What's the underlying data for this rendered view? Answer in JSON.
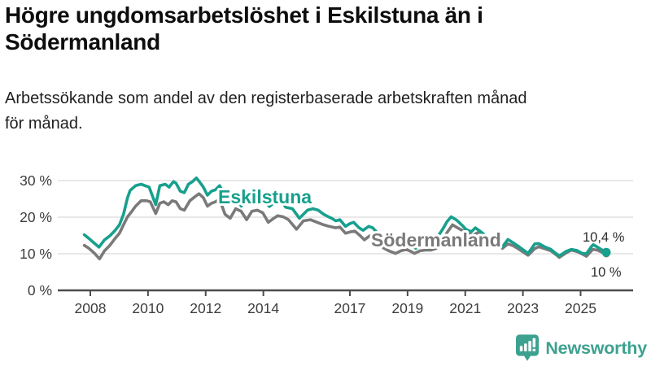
{
  "header": {
    "title_line1": "Högre ungdomsarbetslöshet i Eskilstuna än i",
    "title_line2": "Södermanland",
    "subtitle": "Arbetssökande som andel av den registerbaserade arbetskraften månad för månad."
  },
  "chart_data": {
    "type": "line",
    "unit": "%",
    "grid": true,
    "ylim": [
      0,
      32
    ],
    "xlim_years": [
      2007.1,
      2026.8
    ],
    "y_ticks": [
      {
        "value": 30,
        "label": "30 %"
      },
      {
        "value": 20,
        "label": "20 %"
      },
      {
        "value": 10,
        "label": "10 %"
      },
      {
        "value": 0,
        "label": "0 %"
      }
    ],
    "x_ticks": [
      2008,
      2010,
      2012,
      2014,
      2017,
      2019,
      2021,
      2023,
      2025
    ],
    "series": [
      {
        "name": "Eskilstuna",
        "color": "#17a08d",
        "end_label": "10,4 %",
        "end_value": 10.4,
        "points": [
          [
            2007.79,
            15.2
          ],
          [
            2007.95,
            14.2
          ],
          [
            2008.12,
            13.0
          ],
          [
            2008.3,
            11.8
          ],
          [
            2008.49,
            13.8
          ],
          [
            2008.68,
            14.9
          ],
          [
            2008.86,
            16.4
          ],
          [
            2009.01,
            17.9
          ],
          [
            2009.15,
            20.8
          ],
          [
            2009.29,
            25.3
          ],
          [
            2009.38,
            27.3
          ],
          [
            2009.57,
            28.6
          ],
          [
            2009.76,
            29.0
          ],
          [
            2009.9,
            28.6
          ],
          [
            2010.04,
            28.2
          ],
          [
            2010.27,
            23.4
          ],
          [
            2010.41,
            28.6
          ],
          [
            2010.6,
            29.0
          ],
          [
            2010.73,
            28.2
          ],
          [
            2010.88,
            29.7
          ],
          [
            2010.97,
            29.3
          ],
          [
            2011.12,
            27.1
          ],
          [
            2011.26,
            26.7
          ],
          [
            2011.4,
            29.0
          ],
          [
            2011.54,
            29.7
          ],
          [
            2011.68,
            30.7
          ],
          [
            2011.82,
            29.3
          ],
          [
            2011.92,
            28.2
          ],
          [
            2012.06,
            26.0
          ],
          [
            2012.2,
            27.1
          ],
          [
            2012.34,
            27.5
          ],
          [
            2012.48,
            28.6
          ],
          [
            2012.62,
            26.7
          ],
          [
            2012.67,
            24.2
          ],
          [
            2012.81,
            26.5
          ],
          [
            2012.95,
            26.0
          ],
          [
            2013.09,
            25.2
          ],
          [
            2013.23,
            23.0
          ],
          [
            2013.37,
            24.8
          ],
          [
            2013.51,
            25.4
          ],
          [
            2013.65,
            25.2
          ],
          [
            2013.79,
            24.8
          ],
          [
            2013.93,
            24.4
          ],
          [
            2014.07,
            24.0
          ],
          [
            2014.21,
            22.9
          ],
          [
            2014.35,
            23.8
          ],
          [
            2014.49,
            24.4
          ],
          [
            2014.63,
            24.2
          ],
          [
            2014.78,
            22.7
          ],
          [
            2015.01,
            22.3
          ],
          [
            2015.25,
            19.7
          ],
          [
            2015.53,
            21.9
          ],
          [
            2015.72,
            22.3
          ],
          [
            2015.9,
            21.9
          ],
          [
            2016.09,
            20.8
          ],
          [
            2016.23,
            20.2
          ],
          [
            2016.37,
            19.7
          ],
          [
            2016.51,
            19.0
          ],
          [
            2016.65,
            19.3
          ],
          [
            2016.85,
            17.5
          ],
          [
            2016.99,
            18.2
          ],
          [
            2017.13,
            18.6
          ],
          [
            2017.32,
            17.1
          ],
          [
            2017.46,
            16.4
          ],
          [
            2017.65,
            17.5
          ],
          [
            2017.79,
            17.1
          ],
          [
            2017.98,
            15.5
          ],
          [
            2018.16,
            13.8
          ],
          [
            2018.35,
            13.0
          ],
          [
            2018.54,
            12.6
          ],
          [
            2018.72,
            13.2
          ],
          [
            2018.91,
            13.0
          ],
          [
            2019.1,
            12.2
          ],
          [
            2019.29,
            11.5
          ],
          [
            2019.47,
            12.2
          ],
          [
            2019.66,
            12.8
          ],
          [
            2019.85,
            13.5
          ],
          [
            2020.03,
            14.5
          ],
          [
            2020.2,
            16.5
          ],
          [
            2020.37,
            18.8
          ],
          [
            2020.51,
            20.1
          ],
          [
            2020.7,
            19.2
          ],
          [
            2020.89,
            17.8
          ],
          [
            2021.02,
            16.7
          ],
          [
            2021.21,
            16.0
          ],
          [
            2021.35,
            17.1
          ],
          [
            2021.54,
            16.0
          ],
          [
            2021.73,
            14.8
          ],
          [
            2021.92,
            14.0
          ],
          [
            2022.1,
            13.4
          ],
          [
            2022.29,
            11.9
          ],
          [
            2022.48,
            13.9
          ],
          [
            2022.66,
            13.0
          ],
          [
            2022.85,
            12.0
          ],
          [
            2023.04,
            10.9
          ],
          [
            2023.18,
            10.1
          ],
          [
            2023.41,
            12.7
          ],
          [
            2023.55,
            12.8
          ],
          [
            2023.78,
            11.8
          ],
          [
            2023.97,
            11.2
          ],
          [
            2024.16,
            10.0
          ],
          [
            2024.26,
            9.4
          ],
          [
            2024.49,
            10.6
          ],
          [
            2024.68,
            11.2
          ],
          [
            2024.87,
            10.9
          ],
          [
            2025.06,
            10.1
          ],
          [
            2025.2,
            10.0
          ],
          [
            2025.38,
            12.0
          ],
          [
            2025.44,
            12.5
          ],
          [
            2025.63,
            11.6
          ],
          [
            2025.77,
            10.9
          ],
          [
            2025.89,
            10.4
          ]
        ]
      },
      {
        "name": "Södermanland",
        "color": "#7a7a7a",
        "end_label": "10 %",
        "end_value": 10.0,
        "points": [
          [
            2007.79,
            12.3
          ],
          [
            2007.95,
            11.5
          ],
          [
            2008.12,
            10.3
          ],
          [
            2008.32,
            8.6
          ],
          [
            2008.49,
            10.8
          ],
          [
            2008.68,
            12.3
          ],
          [
            2008.86,
            14.2
          ],
          [
            2009.01,
            15.6
          ],
          [
            2009.15,
            17.9
          ],
          [
            2009.29,
            20.1
          ],
          [
            2009.43,
            21.5
          ],
          [
            2009.57,
            23.0
          ],
          [
            2009.76,
            24.5
          ],
          [
            2009.95,
            24.5
          ],
          [
            2010.08,
            24.2
          ],
          [
            2010.27,
            21.0
          ],
          [
            2010.41,
            23.8
          ],
          [
            2010.55,
            24.2
          ],
          [
            2010.7,
            23.4
          ],
          [
            2010.84,
            24.5
          ],
          [
            2010.97,
            24.2
          ],
          [
            2011.12,
            22.3
          ],
          [
            2011.26,
            21.9
          ],
          [
            2011.45,
            24.5
          ],
          [
            2011.63,
            25.6
          ],
          [
            2011.77,
            26.4
          ],
          [
            2011.92,
            25.3
          ],
          [
            2012.06,
            23.0
          ],
          [
            2012.2,
            23.8
          ],
          [
            2012.34,
            24.2
          ],
          [
            2012.48,
            24.9
          ],
          [
            2012.67,
            20.8
          ],
          [
            2012.85,
            19.7
          ],
          [
            2013.04,
            22.3
          ],
          [
            2013.23,
            21.6
          ],
          [
            2013.42,
            19.3
          ],
          [
            2013.6,
            21.6
          ],
          [
            2013.79,
            21.9
          ],
          [
            2013.98,
            21.2
          ],
          [
            2014.17,
            18.6
          ],
          [
            2014.36,
            19.7
          ],
          [
            2014.5,
            20.4
          ],
          [
            2014.69,
            20.1
          ],
          [
            2014.87,
            19.3
          ],
          [
            2015.15,
            16.7
          ],
          [
            2015.39,
            19.0
          ],
          [
            2015.63,
            19.3
          ],
          [
            2015.86,
            18.6
          ],
          [
            2016.09,
            17.9
          ],
          [
            2016.28,
            17.5
          ],
          [
            2016.51,
            17.1
          ],
          [
            2016.65,
            17.3
          ],
          [
            2016.85,
            15.6
          ],
          [
            2017.03,
            16.0
          ],
          [
            2017.17,
            16.2
          ],
          [
            2017.36,
            14.9
          ],
          [
            2017.5,
            13.8
          ],
          [
            2017.69,
            14.9
          ],
          [
            2017.83,
            14.5
          ],
          [
            2018.02,
            13.0
          ],
          [
            2018.16,
            11.6
          ],
          [
            2018.35,
            10.8
          ],
          [
            2018.58,
            10.1
          ],
          [
            2018.77,
            10.8
          ],
          [
            2018.96,
            11.2
          ],
          [
            2019.15,
            10.5
          ],
          [
            2019.24,
            10.1
          ],
          [
            2019.43,
            10.8
          ],
          [
            2019.62,
            11.0
          ],
          [
            2019.81,
            11.0
          ],
          [
            2020.0,
            11.5
          ],
          [
            2020.2,
            13.5
          ],
          [
            2020.37,
            15.8
          ],
          [
            2020.56,
            17.9
          ],
          [
            2020.75,
            17.0
          ],
          [
            2020.94,
            16.2
          ],
          [
            2021.12,
            15.5
          ],
          [
            2021.26,
            15.0
          ],
          [
            2021.44,
            15.8
          ],
          [
            2021.63,
            14.6
          ],
          [
            2021.82,
            13.6
          ],
          [
            2022.0,
            12.9
          ],
          [
            2022.1,
            12.7
          ],
          [
            2022.29,
            11.5
          ],
          [
            2022.48,
            12.7
          ],
          [
            2022.66,
            12.2
          ],
          [
            2022.85,
            11.3
          ],
          [
            2023.04,
            10.3
          ],
          [
            2023.18,
            9.6
          ],
          [
            2023.41,
            11.4
          ],
          [
            2023.55,
            11.9
          ],
          [
            2023.78,
            11.3
          ],
          [
            2023.97,
            10.8
          ],
          [
            2024.16,
            9.7
          ],
          [
            2024.26,
            9.0
          ],
          [
            2024.49,
            10.2
          ],
          [
            2024.68,
            11.0
          ],
          [
            2024.87,
            10.6
          ],
          [
            2025.06,
            9.9
          ],
          [
            2025.2,
            9.3
          ],
          [
            2025.42,
            11.2
          ],
          [
            2025.58,
            11.0
          ],
          [
            2025.77,
            10.3
          ],
          [
            2025.89,
            10.0
          ]
        ]
      }
    ]
  },
  "footer": {
    "brand": "Newsworthy",
    "brand_color": "#3da18f"
  }
}
